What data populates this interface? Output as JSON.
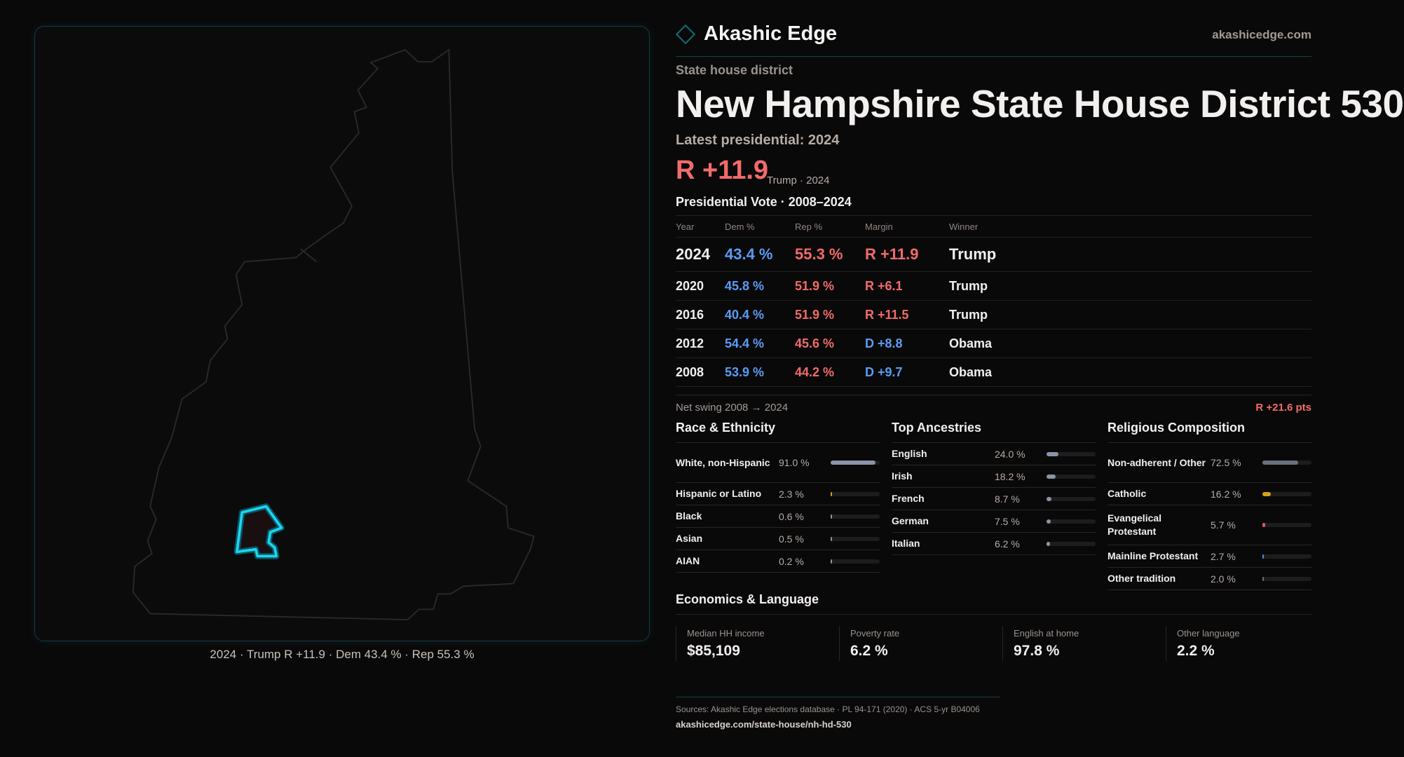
{
  "brand": {
    "name": "Akashic Edge",
    "site": "akashicedge.com",
    "accent": "#0f6e7a"
  },
  "header": {
    "kicker": "State house district",
    "title": "New Hampshire State House District 530",
    "latest": "Latest presidential: 2024",
    "margin": "R +11.9",
    "margin_sub": "Trump · 2024"
  },
  "map": {
    "caption": "2024 · Trump R +11.9 · Dem 43.4 % · Rep 55.3 %",
    "highlight_color": "#19d6f0"
  },
  "votes": {
    "title": "Presidential Vote · 2008–2024",
    "columns": [
      "Year",
      "Dem %",
      "Rep %",
      "Margin",
      "Winner"
    ],
    "rows": [
      {
        "year": "2024",
        "dem": "43.4 %",
        "rep": "55.3 %",
        "margin": "R +11.9",
        "party": "R",
        "winner": "Trump"
      },
      {
        "year": "2020",
        "dem": "45.8 %",
        "rep": "51.9 %",
        "margin": "R +6.1",
        "party": "R",
        "winner": "Trump"
      },
      {
        "year": "2016",
        "dem": "40.4 %",
        "rep": "51.9 %",
        "margin": "R +11.5",
        "party": "R",
        "winner": "Trump"
      },
      {
        "year": "2012",
        "dem": "54.4 %",
        "rep": "45.6 %",
        "margin": "D +8.8",
        "party": "D",
        "winner": "Obama"
      },
      {
        "year": "2008",
        "dem": "53.9 %",
        "rep": "44.2 %",
        "margin": "D +9.7",
        "party": "D",
        "winner": "Obama"
      }
    ]
  },
  "swing": {
    "label": "Net swing 2008 → 2024",
    "value": "R +21.6 pts"
  },
  "sections": [
    {
      "title": "Race & Ethnicity",
      "items": [
        {
          "label": "White, non-Hispanic",
          "value": "91.0 %",
          "pct": 91.0,
          "color": "#8a94a6"
        },
        {
          "label": "Hispanic or Latino",
          "value": "2.3 %",
          "pct": 2.3,
          "color": "#d4a017"
        },
        {
          "label": "Black",
          "value": "0.6 %",
          "pct": 0.6,
          "color": "#8a94a6"
        },
        {
          "label": "Asian",
          "value": "0.5 %",
          "pct": 0.5,
          "color": "#8a94a6"
        },
        {
          "label": "AIAN",
          "value": "0.2 %",
          "pct": 0.2,
          "color": "#8a94a6"
        }
      ]
    },
    {
      "title": "Top Ancestries",
      "items": [
        {
          "label": "English",
          "value": "24.0 %",
          "pct": 24.0,
          "color": "#8a94a6"
        },
        {
          "label": "Irish",
          "value": "18.2 %",
          "pct": 18.2,
          "color": "#8a94a6"
        },
        {
          "label": "French",
          "value": "8.7 %",
          "pct": 8.7,
          "color": "#8a94a6"
        },
        {
          "label": "German",
          "value": "7.5 %",
          "pct": 7.5,
          "color": "#8a94a6"
        },
        {
          "label": "Italian",
          "value": "6.2 %",
          "pct": 6.2,
          "color": "#8a94a6"
        }
      ]
    },
    {
      "title": "Religious Composition",
      "items": [
        {
          "label": "Non-adherent / Other",
          "value": "72.5 %",
          "pct": 72.5,
          "color": "#6b7080"
        },
        {
          "label": "Catholic",
          "value": "16.2 %",
          "pct": 16.2,
          "color": "#d4a017"
        },
        {
          "label": "Evangelical Protestant",
          "value": "5.7 %",
          "pct": 5.7,
          "color": "#e05560"
        },
        {
          "label": "Mainline Protestant",
          "value": "2.7 %",
          "pct": 2.7,
          "color": "#4a8ee6"
        },
        {
          "label": "Other tradition",
          "value": "2.0 %",
          "pct": 2.0,
          "color": "#6b7080"
        }
      ]
    }
  ],
  "economics": {
    "title": "Economics & Language",
    "cards": [
      {
        "label": "Median HH income",
        "value": "$85,109"
      },
      {
        "label": "Poverty rate",
        "value": "6.2 %"
      },
      {
        "label": "English at home",
        "value": "97.8 %"
      },
      {
        "label": "Other language",
        "value": "2.2 %"
      }
    ]
  },
  "footer": {
    "sources": "Sources: Akashic Edge elections database · PL 94-171 (2020) · ACS 5-yr B04006",
    "url": "akashicedge.com/state-house/nh-hd-530"
  }
}
